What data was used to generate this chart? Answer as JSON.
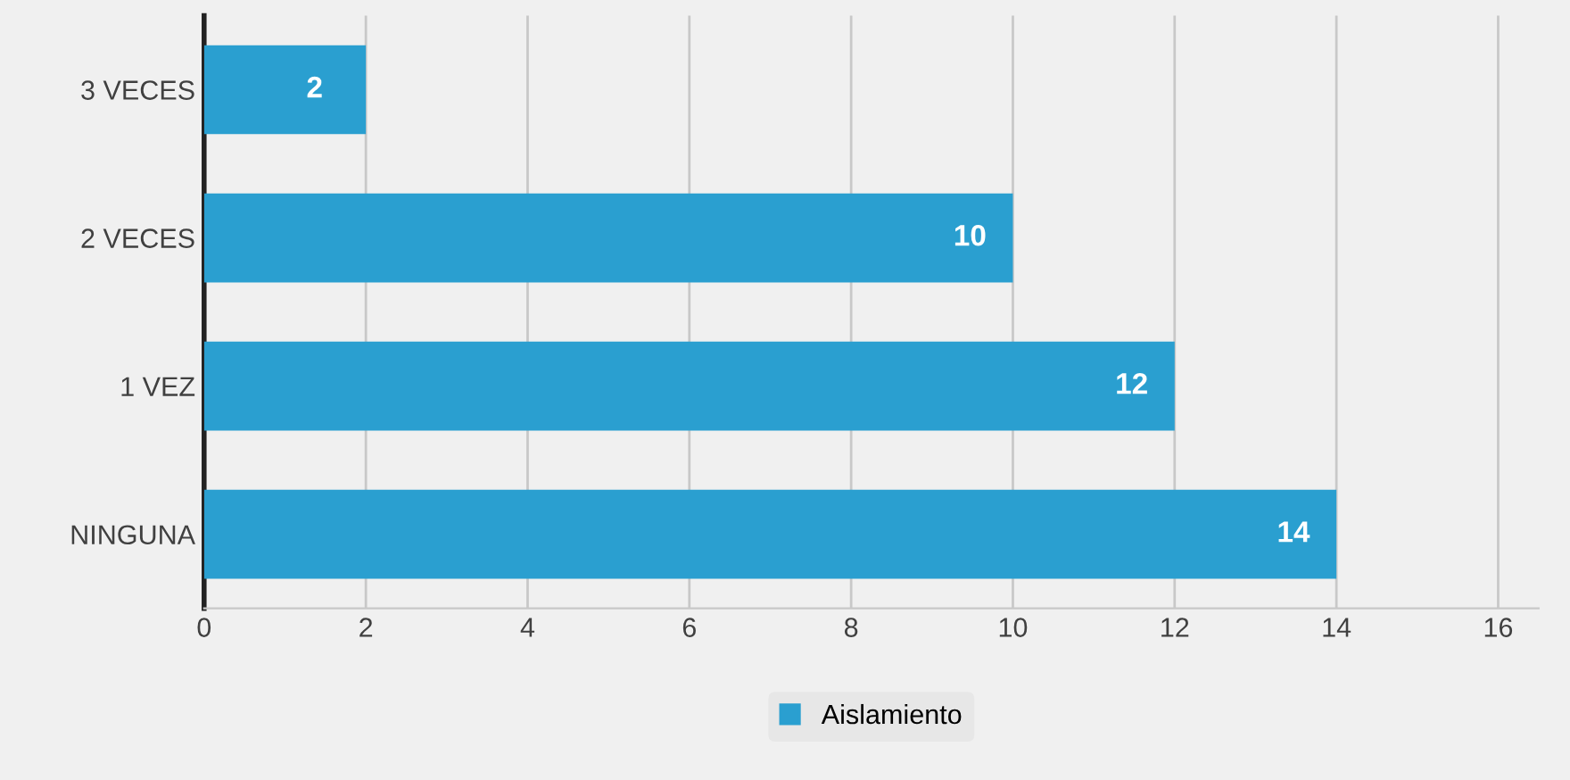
{
  "chart_data": {
    "type": "bar",
    "orientation": "horizontal",
    "categories": [
      "3 VECES",
      "2 VECES",
      "1 VEZ",
      "NINGUNA"
    ],
    "series": [
      {
        "name": "Aislamiento",
        "color": "#2a9fd0",
        "values": [
          2,
          10,
          12,
          14
        ]
      }
    ],
    "xlim": [
      0,
      16.5
    ],
    "xticks": [
      0,
      2,
      4,
      6,
      8,
      10,
      12,
      14,
      16
    ],
    "grid": "x",
    "legend": "bottom",
    "data_labels": true
  }
}
